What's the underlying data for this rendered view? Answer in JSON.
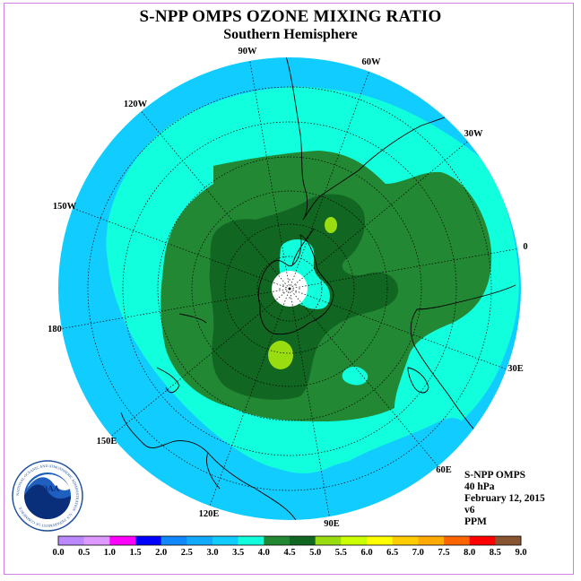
{
  "header": {
    "title": "S-NPP OMPS OZONE MIXING RATIO",
    "subtitle": "Southern Hemisphere"
  },
  "map": {
    "longitude_labels": [
      "90W",
      "60W",
      "30W",
      "0",
      "30E",
      "60E",
      "90E",
      "120E",
      "150E",
      "180",
      "150W",
      "120W"
    ]
  },
  "info": {
    "instrument": "S-NPP OMPS",
    "level": "40 hPa",
    "date": "February 12, 2015",
    "version": "v6",
    "units": "PPM"
  },
  "colorbar": {
    "ticks": [
      "0.0",
      "0.5",
      "1.0",
      "1.5",
      "2.0",
      "2.5",
      "3.0",
      "3.5",
      "4.0",
      "4.5",
      "5.0",
      "5.5",
      "6.0",
      "6.5",
      "7.0",
      "7.5",
      "8.0",
      "8.5",
      "9.0"
    ],
    "colors": [
      "#bb88ff",
      "#dd99ff",
      "#ff00ff",
      "#0000ff",
      "#1188ff",
      "#11aaff",
      "#11ccff",
      "#11ffdd",
      "#228833",
      "#116622",
      "#99dd11",
      "#ccff00",
      "#ffff00",
      "#ffcc00",
      "#ffaa00",
      "#ff6600",
      "#ff0000",
      "#885533"
    ]
  },
  "logo": {
    "text": "NOAA",
    "ring_text": "NATIONAL OCEANIC AND ATMOSPHERIC ADMINISTRATION · U.S. DEPARTMENT OF COMMERCE"
  }
}
